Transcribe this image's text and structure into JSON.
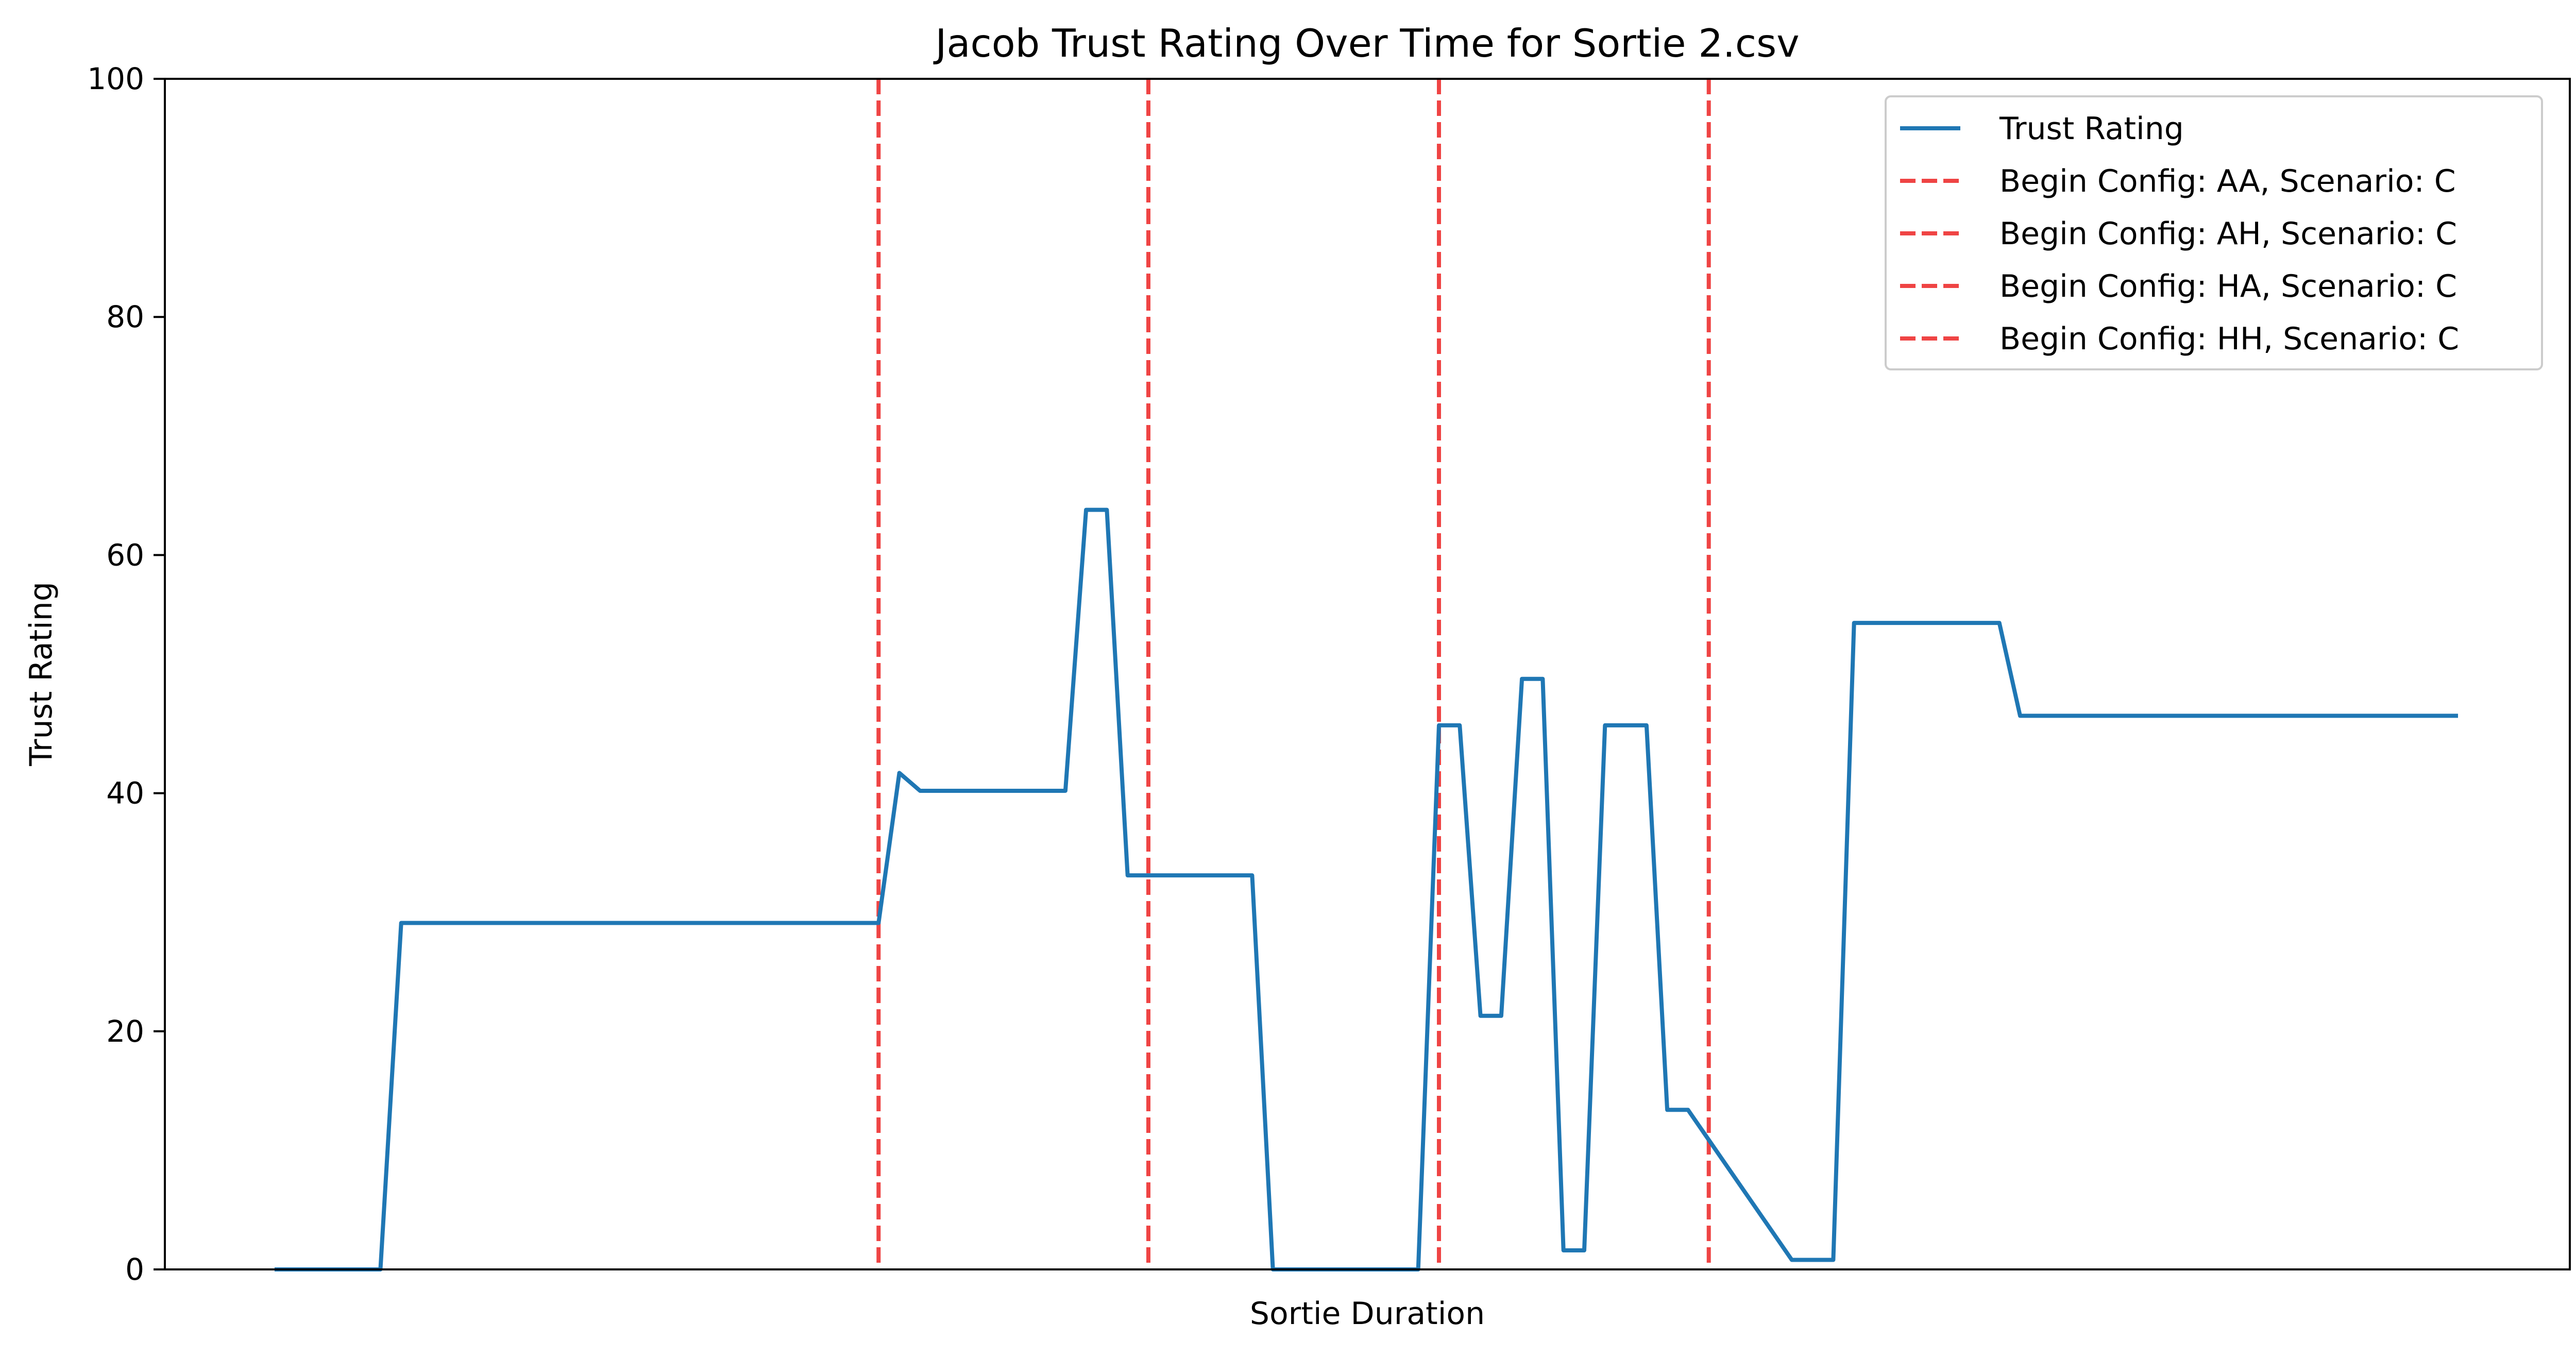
{
  "chart_data": {
    "type": "line",
    "title": "Jacob Trust Rating Over Time for Sortie 2.csv",
    "xlabel": "Sortie Duration",
    "ylabel": "Trust Rating",
    "ylim": [
      0,
      100
    ],
    "yticks": [
      "0",
      "20",
      "40",
      "60",
      "80",
      "100"
    ],
    "xticks_shown": false,
    "grid": false,
    "legend_position": "upper right",
    "series": [
      {
        "name": "Trust Rating",
        "color": "#1f77b4",
        "x": [
          0,
          5,
          6,
          29,
          30,
          31,
          32,
          38,
          39,
          40,
          41,
          47,
          48,
          55,
          56,
          57,
          58,
          59,
          60,
          61,
          62,
          63,
          64,
          65,
          66,
          67,
          68,
          73,
          74,
          75,
          76,
          77,
          78,
          79,
          83,
          84,
          85,
          94,
          95,
          104,
          105
        ],
        "y": [
          0,
          0,
          29.1,
          29.1,
          41.7,
          40.2,
          40.2,
          40.2,
          63.8,
          63.8,
          33.1,
          33.1,
          0,
          0,
          45.7,
          45.7,
          21.3,
          21.3,
          49.6,
          49.6,
          1.6,
          1.6,
          45.7,
          45.7,
          45.7,
          13.4,
          13.4,
          0.8,
          0.8,
          0.8,
          54.3,
          54.3,
          54.3,
          54.3,
          54.3,
          46.5,
          46.5,
          46.5,
          46.5,
          46.5,
          46.5
        ]
      }
    ],
    "vlines": [
      {
        "name": "Begin Config: AA, Scenario: C",
        "x": 29.0,
        "color": "#ef4444",
        "style": "dashed"
      },
      {
        "name": "Begin Config: AH, Scenario: C",
        "x": 42.0,
        "color": "#ef4444",
        "style": "dashed"
      },
      {
        "name": "Begin Config: HA, Scenario: C",
        "x": 56.0,
        "color": "#ef4444",
        "style": "dashed"
      },
      {
        "name": "Begin Config: HH, Scenario: C",
        "x": 69.0,
        "color": "#ef4444",
        "style": "dashed"
      }
    ]
  }
}
